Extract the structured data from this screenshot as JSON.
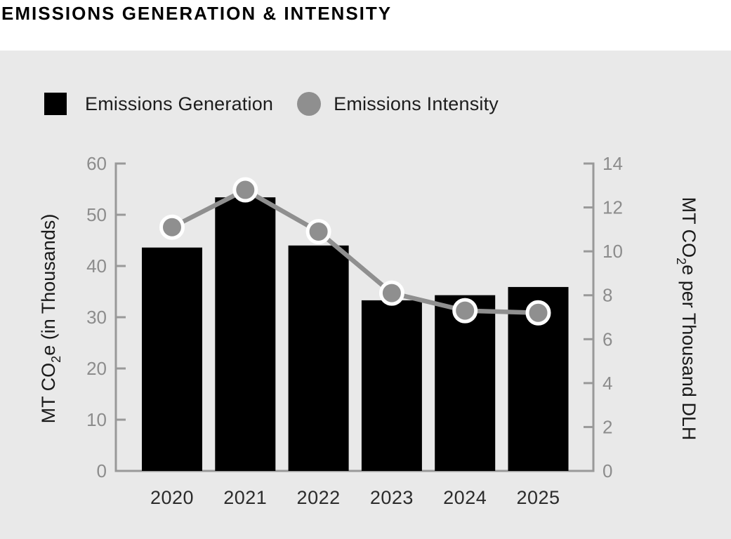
{
  "title": "EMISSIONS GENERATION & INTENSITY",
  "legend": [
    {
      "label": "Emissions Generation",
      "swatch": "square",
      "color": "#000000"
    },
    {
      "label": "Emissions Intensity",
      "swatch": "circle",
      "color": "#8f8f8f"
    }
  ],
  "chart_data": {
    "type": "bar",
    "subtype": "bar-line-combo-dual-axis",
    "title": "EMISSIONS GENERATION & INTENSITY",
    "categories": [
      "2020",
      "2021",
      "2022",
      "2023",
      "2024",
      "2025"
    ],
    "series": [
      {
        "name": "Emissions Generation",
        "type": "bar",
        "axis": "left",
        "color": "#000000",
        "values": [
          43.6,
          53.4,
          44.0,
          33.3,
          34.3,
          35.9
        ]
      },
      {
        "name": "Emissions Intensity",
        "type": "line",
        "axis": "right",
        "color": "#8f8f8f",
        "marker": "circle-with-white-ring",
        "values": [
          11.1,
          12.8,
          10.9,
          8.1,
          7.3,
          7.2
        ]
      }
    ],
    "left_axis": {
      "label": "MT CO2e (in Thousands)",
      "min": 0,
      "max": 60,
      "ticks": [
        0,
        10,
        20,
        30,
        40,
        50,
        60
      ]
    },
    "right_axis": {
      "label": "MT CO2e per Thousand DLH",
      "min": 0,
      "max": 14,
      "ticks": [
        0,
        2,
        4,
        6,
        8,
        10,
        12,
        14
      ]
    },
    "grid": false,
    "legend_position": "top-left",
    "plot_bg": "#e9e9e9"
  },
  "colors": {
    "page_bg": "#ffffff",
    "panel_bg": "#e9e9e9",
    "bar": "#000000",
    "line": "#8f8f8f",
    "axis": "#999999",
    "tick_label": "#8c8c8c",
    "category_label": "#2b2b2b",
    "title": "#000000",
    "legend_text": "#1d1d1d",
    "marker_ring": "#ffffff"
  }
}
